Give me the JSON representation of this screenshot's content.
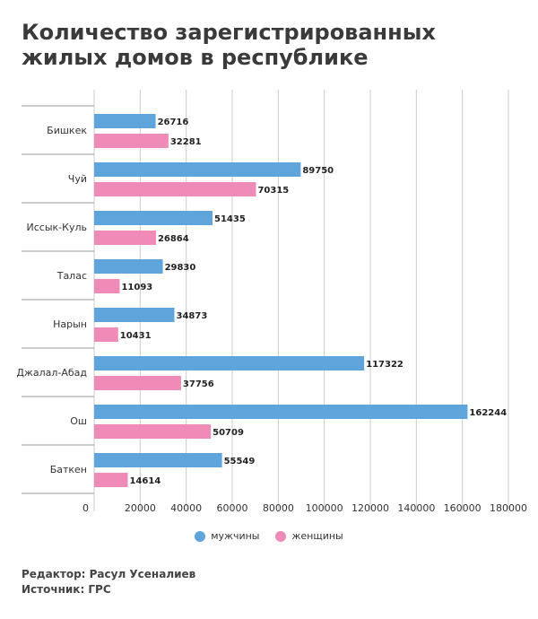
{
  "title": "Количество зарегистрированных жилых домов в республике",
  "legend": {
    "men_label": "мужчины",
    "women_label": "женщины"
  },
  "colors": {
    "men": "#5fa5dc",
    "women": "#f08ab6"
  },
  "footer": {
    "editor": "Редактор: Расул Усеналиев",
    "source": "Источник: ГРС"
  },
  "chart_data": {
    "type": "bar",
    "orientation": "horizontal",
    "title": "Количество зарегистрированных жилых домов в республике",
    "categories": [
      "Бишкек",
      "Чуй",
      "Иссык-Куль",
      "Талас",
      "Нарын",
      "Джалал-Абад",
      "Ош",
      "Баткен"
    ],
    "series": [
      {
        "name": "мужчины",
        "values": [
          26716,
          89750,
          51435,
          29830,
          34873,
          117322,
          162244,
          55549
        ]
      },
      {
        "name": "женщины",
        "values": [
          32281,
          70315,
          26864,
          11093,
          10431,
          37756,
          50709,
          14614
        ]
      }
    ],
    "xlim": [
      0,
      180000
    ],
    "xticks": [
      0,
      20000,
      40000,
      60000,
      80000,
      100000,
      120000,
      140000,
      160000,
      180000
    ],
    "grid": true,
    "legend_position": "bottom"
  }
}
